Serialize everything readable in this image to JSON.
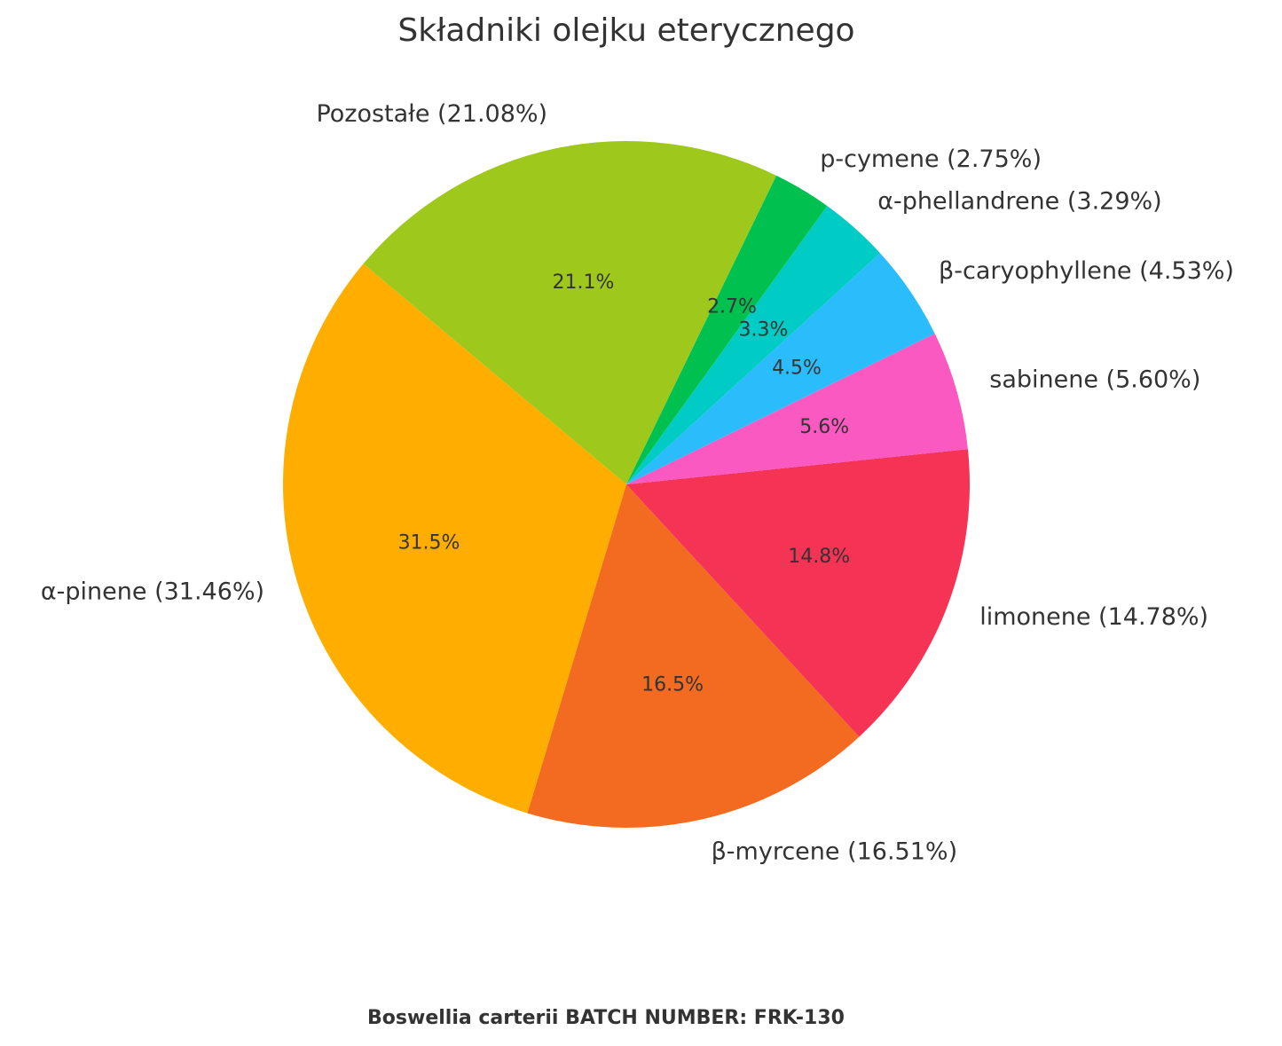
{
  "chart_data": {
    "type": "pie",
    "title": "Składniki olejku eterycznego",
    "footer": "Boswellia carterii BATCH NUMBER: FRK-130",
    "categories": [
      "α-pinene (31.46%)",
      "β-myrcene (16.51%)",
      "limonene (14.78%)",
      "sabinene (5.60%)",
      "β-caryophyllene (4.53%)",
      "α-phellandrene (3.29%)",
      "p-cymene (2.75%)",
      "Pozostałe (21.08%)"
    ],
    "values": [
      31.46,
      16.51,
      14.78,
      5.6,
      4.53,
      3.29,
      2.75,
      21.08
    ],
    "value_labels": [
      "31.5%",
      "16.5%",
      "14.8%",
      "5.6%",
      "4.5%",
      "3.3%",
      "2.7%",
      "21.1%"
    ],
    "colors": [
      "#ffae00",
      "#f26b21",
      "#f53355",
      "#f959c1",
      "#2bbcfc",
      "#00cbc4",
      "#00c150",
      "#9fc81c"
    ]
  }
}
